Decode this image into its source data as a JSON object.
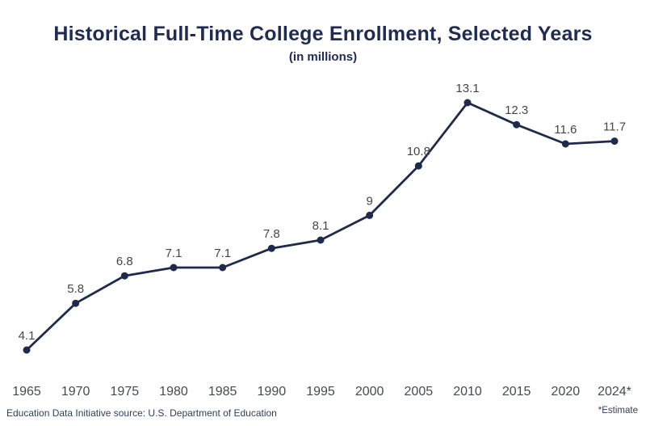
{
  "header": {
    "title": "Historical Full-Time College Enrollment, Selected Years",
    "subtitle": "(in millions)"
  },
  "footer": {
    "source": "Education Data Initiative source: U.S. Department of Education",
    "estimate_note": "*Estimate"
  },
  "colors": {
    "line": "#1f2a4d",
    "point": "#1f2a4d",
    "title": "#1f2b55",
    "data_label": "#464646",
    "axis_label": "#454a52",
    "footer_text": "#333e5c"
  },
  "chart_data": {
    "type": "line",
    "title": "Historical Full-Time College Enrollment, Selected Years",
    "subtitle": "(in millions)",
    "xlabel": "",
    "ylabel": "",
    "value_unit": "millions",
    "grid": false,
    "legend": false,
    "ylim": [
      3,
      14
    ],
    "categories": [
      "1965",
      "1970",
      "1975",
      "1980",
      "1985",
      "1990",
      "1995",
      "2000",
      "2005",
      "2010",
      "2015",
      "2020",
      "2024*"
    ],
    "values": [
      4.1,
      5.8,
      6.8,
      7.1,
      7.1,
      7.8,
      8.1,
      9,
      10.8,
      13.1,
      12.3,
      11.6,
      11.7
    ],
    "point_labels": [
      "4.1",
      "5.8",
      "6.8",
      "7.1",
      "7.1",
      "7.8",
      "8.1",
      "9",
      "10.8",
      "13.1",
      "12.3",
      "11.6",
      "11.7"
    ]
  }
}
